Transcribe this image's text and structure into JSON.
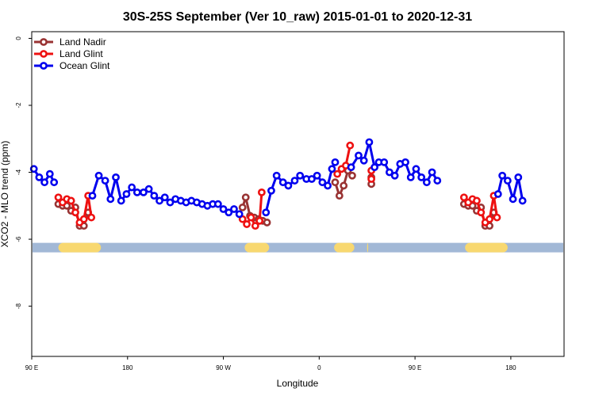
{
  "chart_data": {
    "type": "line",
    "title": "30S-25S September (Ver 10_raw)   2015-01-01 to 2020-12-31",
    "xlabel": "Longitude",
    "ylabel": "XCO2 - MLO trend (ppm)",
    "xlim": [
      90,
      590
    ],
    "ylim": [
      -9.5,
      0.2
    ],
    "x_ticks": [
      {
        "value": 90,
        "label": "90 E"
      },
      {
        "value": 180,
        "label": "180"
      },
      {
        "value": 270,
        "label": "90 W"
      },
      {
        "value": 360,
        "label": "0"
      },
      {
        "value": 450,
        "label": "90 E"
      },
      {
        "value": 540,
        "label": "180"
      }
    ],
    "y_ticks": [
      {
        "value": 0,
        "label": "0"
      },
      {
        "value": -2,
        "label": "-2"
      },
      {
        "value": -4,
        "label": "-4"
      },
      {
        "value": -6,
        "label": "-6"
      },
      {
        "value": -8,
        "label": "-8"
      }
    ],
    "grid": false,
    "legend_position": "top-left",
    "band": {
      "y": -6.25,
      "color": "#a2b8d6",
      "land_color": "#f8d870",
      "land_segments": [
        [
          115,
          155
        ],
        [
          290,
          313
        ],
        [
          374,
          393
        ],
        [
          405,
          406
        ],
        [
          497,
          537
        ]
      ]
    },
    "series": [
      {
        "name": "Land Nadir",
        "color": "#993333",
        "segments": [
          [
            [
              115,
              -4.95
            ],
            [
              119,
              -5.0
            ],
            [
              123,
              -5.0
            ],
            [
              127,
              -5.15
            ],
            [
              131,
              -5.05
            ],
            [
              135,
              -5.6
            ],
            [
              139,
              -5.6
            ],
            [
              143,
              -5.2
            ]
          ],
          [
            [
              288,
              -5.05
            ],
            [
              291,
              -4.75
            ],
            [
              295,
              -5.3
            ],
            [
              299,
              -5.35
            ],
            [
              303,
              -5.4
            ],
            [
              307,
              -5.45
            ],
            [
              311,
              -5.5
            ]
          ],
          [
            [
              375,
              -4.3
            ],
            [
              379,
              -4.7
            ],
            [
              383,
              -4.4
            ],
            [
              387,
              -3.95
            ],
            [
              391,
              -4.1
            ]
          ],
          [
            [
              409,
              -4.15
            ],
            [
              409,
              -4.35
            ]
          ],
          [
            [
              496,
              -4.95
            ],
            [
              500,
              -5.0
            ],
            [
              504,
              -5.0
            ],
            [
              508,
              -5.15
            ],
            [
              512,
              -5.05
            ],
            [
              516,
              -5.6
            ],
            [
              520,
              -5.6
            ],
            [
              524,
              -5.2
            ]
          ]
        ]
      },
      {
        "name": "Land Glint",
        "color": "#ee1111",
        "segments": [
          [
            [
              115,
              -4.75
            ],
            [
              119,
              -4.9
            ],
            [
              123,
              -4.8
            ],
            [
              127,
              -4.85
            ],
            [
              131,
              -5.2
            ],
            [
              135,
              -5.5
            ],
            [
              139,
              -5.4
            ],
            [
              143,
              -4.7
            ],
            [
              146,
              -5.35
            ]
          ],
          [
            [
              288,
              -5.4
            ],
            [
              292,
              -5.55
            ],
            [
              296,
              -5.35
            ],
            [
              300,
              -5.6
            ],
            [
              304,
              -5.45
            ],
            [
              306,
              -4.6
            ]
          ],
          [
            [
              377,
              -4.05
            ],
            [
              381,
              -3.9
            ],
            [
              385,
              -3.8
            ],
            [
              389,
              -3.2
            ]
          ],
          [
            [
              409,
              -3.95
            ],
            [
              409,
              -4.2
            ]
          ],
          [
            [
              496,
              -4.75
            ],
            [
              500,
              -4.9
            ],
            [
              504,
              -4.8
            ],
            [
              508,
              -4.85
            ],
            [
              512,
              -5.2
            ],
            [
              516,
              -5.5
            ],
            [
              520,
              -5.4
            ],
            [
              524,
              -4.7
            ],
            [
              527,
              -5.35
            ]
          ]
        ]
      },
      {
        "name": "Ocean Glint",
        "color": "#0000ee",
        "segments": [
          [
            [
              92,
              -3.9
            ],
            [
              97,
              -4.15
            ],
            [
              102,
              -4.3
            ],
            [
              107,
              -4.05
            ],
            [
              111,
              -4.3
            ]
          ],
          [
            [
              147,
              -4.7
            ],
            [
              153,
              -4.1
            ],
            [
              159,
              -4.25
            ],
            [
              164,
              -4.8
            ],
            [
              169,
              -4.15
            ],
            [
              174,
              -4.85
            ],
            [
              179,
              -4.65
            ],
            [
              184,
              -4.45
            ],
            [
              189,
              -4.6
            ],
            [
              195,
              -4.6
            ],
            [
              200,
              -4.5
            ],
            [
              205,
              -4.7
            ],
            [
              210,
              -4.85
            ],
            [
              215,
              -4.75
            ],
            [
              220,
              -4.9
            ],
            [
              225,
              -4.8
            ],
            [
              230,
              -4.85
            ],
            [
              235,
              -4.9
            ],
            [
              240,
              -4.85
            ],
            [
              245,
              -4.9
            ],
            [
              250,
              -4.95
            ],
            [
              255,
              -5.0
            ],
            [
              260,
              -4.95
            ],
            [
              265,
              -4.95
            ],
            [
              270,
              -5.1
            ],
            [
              275,
              -5.2
            ],
            [
              280,
              -5.1
            ],
            [
              285,
              -5.25
            ]
          ],
          [
            [
              310,
              -5.2
            ],
            [
              315,
              -4.55
            ],
            [
              320,
              -4.1
            ],
            [
              326,
              -4.3
            ],
            [
              331,
              -4.4
            ],
            [
              337,
              -4.25
            ],
            [
              342,
              -4.1
            ],
            [
              348,
              -4.2
            ],
            [
              353,
              -4.2
            ],
            [
              358,
              -4.1
            ],
            [
              363,
              -4.3
            ],
            [
              368,
              -4.4
            ],
            [
              372,
              -3.9
            ],
            [
              375,
              -3.7
            ]
          ],
          [
            [
              390,
              -3.85
            ],
            [
              397,
              -3.5
            ],
            [
              402,
              -3.65
            ],
            [
              407,
              -3.1
            ],
            [
              412,
              -3.85
            ],
            [
              416,
              -3.7
            ],
            [
              421,
              -3.7
            ],
            [
              426,
              -4.0
            ],
            [
              431,
              -4.1
            ],
            [
              436,
              -3.75
            ],
            [
              441,
              -3.7
            ],
            [
              446,
              -4.15
            ],
            [
              451,
              -3.9
            ],
            [
              456,
              -4.15
            ],
            [
              461,
              -4.3
            ],
            [
              466,
              -4.0
            ],
            [
              471,
              -4.25
            ]
          ],
          [
            [
              528,
              -4.65
            ],
            [
              532,
              -4.1
            ],
            [
              537,
              -4.25
            ],
            [
              542,
              -4.8
            ],
            [
              547,
              -4.15
            ],
            [
              551,
              -4.85
            ]
          ]
        ]
      }
    ]
  }
}
